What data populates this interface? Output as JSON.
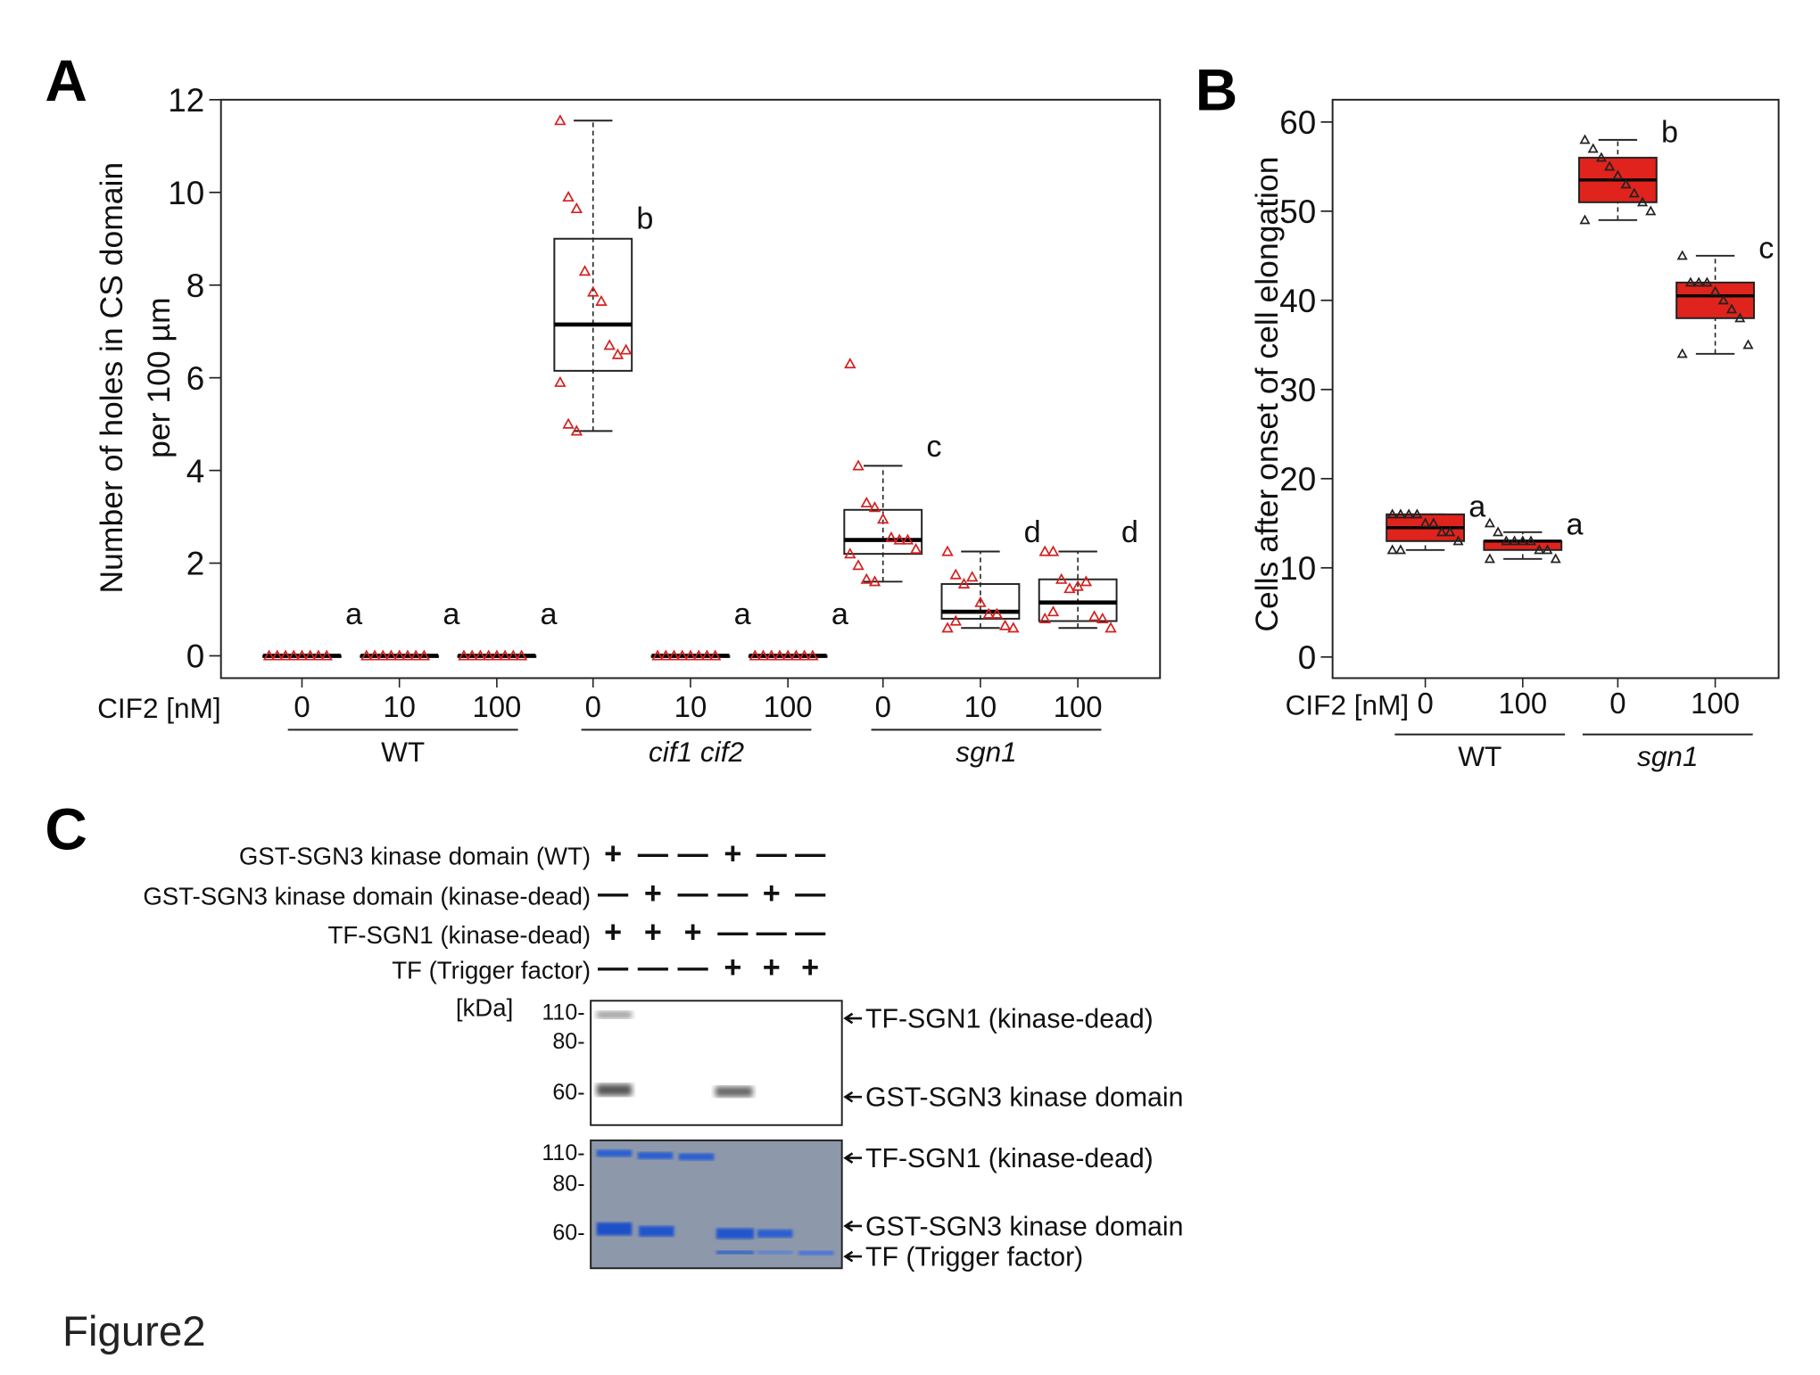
{
  "panels": {
    "a": "A",
    "b": "B",
    "c": "C"
  },
  "figure_label": "Figure2",
  "chart_data": [
    {
      "type": "box",
      "panel": "A",
      "ylabel_line1": "Number of holes in CS domain",
      "ylabel_line2": "per 100 µm",
      "ylim": [
        0,
        12
      ],
      "yticks": [
        "0",
        "2",
        "4",
        "6",
        "8",
        "10",
        "12"
      ],
      "xaxis_title": "CIF2 [nM]",
      "categories": [
        "0",
        "10",
        "100",
        "0",
        "10",
        "100",
        "0",
        "10",
        "100"
      ],
      "group_labels": [
        "WT",
        "cif1 cif2",
        "sgn1"
      ],
      "point_color": "#d42020",
      "boxes": [
        {
          "whisker_low": 0,
          "q1": 0,
          "median": 0,
          "q3": 0,
          "whisker_high": 0,
          "letter": "a",
          "points": [
            0,
            0,
            0,
            0,
            0,
            0,
            0,
            0
          ]
        },
        {
          "whisker_low": 0,
          "q1": 0,
          "median": 0,
          "q3": 0,
          "whisker_high": 0,
          "letter": "a",
          "points": [
            0,
            0,
            0,
            0,
            0,
            0,
            0,
            0
          ]
        },
        {
          "whisker_low": 0,
          "q1": 0,
          "median": 0,
          "q3": 0,
          "whisker_high": 0,
          "letter": "a",
          "points": [
            0,
            0,
            0,
            0,
            0,
            0,
            0,
            0
          ]
        },
        {
          "whisker_low": 4.85,
          "q1": 6.15,
          "median": 7.15,
          "q3": 9.0,
          "whisker_high": 11.55,
          "letter": "b",
          "points": [
            11.55,
            9.9,
            9.65,
            8.3,
            7.85,
            7.65,
            6.7,
            6.5,
            6.6,
            5.9,
            5.0,
            4.85
          ]
        },
        {
          "whisker_low": 0,
          "q1": 0,
          "median": 0,
          "q3": 0,
          "whisker_high": 0,
          "letter": "a",
          "points": [
            0,
            0,
            0,
            0,
            0,
            0,
            0,
            0
          ]
        },
        {
          "whisker_low": 0,
          "q1": 0,
          "median": 0,
          "q3": 0,
          "whisker_high": 0,
          "letter": "a",
          "points": [
            0,
            0,
            0,
            0,
            0,
            0,
            0,
            0
          ]
        },
        {
          "whisker_low": 1.6,
          "q1": 2.2,
          "median": 2.5,
          "q3": 3.15,
          "whisker_high": 4.1,
          "letter": "c",
          "points": [
            6.3,
            4.1,
            3.3,
            3.2,
            2.95,
            2.55,
            2.5,
            2.5,
            2.3,
            2.2,
            1.95,
            1.65,
            1.6
          ]
        },
        {
          "whisker_low": 0.6,
          "q1": 0.8,
          "median": 0.95,
          "q3": 1.55,
          "whisker_high": 2.25,
          "letter": "d",
          "points": [
            2.25,
            1.75,
            1.55,
            1.7,
            1.15,
            0.9,
            0.9,
            0.65,
            0.6,
            0.6,
            0.75
          ]
        },
        {
          "whisker_low": 0.6,
          "q1": 0.75,
          "median": 1.15,
          "q3": 1.65,
          "whisker_high": 2.25,
          "letter": "d",
          "points": [
            2.25,
            2.25,
            1.65,
            1.45,
            1.5,
            1.6,
            0.85,
            0.8,
            0.6,
            0.8,
            0.95
          ]
        }
      ]
    },
    {
      "type": "box",
      "panel": "B",
      "ylabel": "Cells after onset of cell elongation",
      "ylim": [
        0,
        60
      ],
      "yticks": [
        "0",
        "10",
        "20",
        "30",
        "40",
        "50",
        "60"
      ],
      "xaxis_title": "CIF2 [nM]",
      "categories": [
        "0",
        "100",
        "0",
        "100"
      ],
      "group_labels": [
        "WT",
        "sgn1"
      ],
      "box_color": "#e0231c",
      "boxes": [
        {
          "whisker_low": 12,
          "q1": 13,
          "median": 14.5,
          "q3": 16,
          "whisker_high": 16,
          "letter": "a",
          "points": [
            16,
            16,
            16,
            16,
            15,
            15,
            14,
            14,
            13,
            12,
            12
          ]
        },
        {
          "whisker_low": 11,
          "q1": 12,
          "median": 13,
          "q3": 13,
          "whisker_high": 14,
          "letter": "a",
          "points": [
            15,
            14,
            13,
            13,
            13,
            13,
            12,
            12,
            11,
            11
          ]
        },
        {
          "whisker_low": 49,
          "q1": 51,
          "median": 53.5,
          "q3": 56,
          "whisker_high": 58,
          "letter": "b",
          "points": [
            58,
            57,
            56,
            55,
            54,
            53,
            52,
            51,
            50,
            49
          ]
        },
        {
          "whisker_low": 34,
          "q1": 38,
          "median": 40.5,
          "q3": 42,
          "whisker_high": 45,
          "letter": "c",
          "points": [
            45,
            42,
            42,
            42,
            41,
            40,
            39,
            38,
            35,
            34
          ]
        }
      ]
    }
  ],
  "panel_c": {
    "rows": [
      {
        "label": "GST-SGN3 kinase domain (WT)",
        "signs": [
          "+",
          "—",
          "—",
          "+",
          "—",
          "—"
        ]
      },
      {
        "label": "GST-SGN3 kinase domain (kinase-dead)",
        "signs": [
          "—",
          "+",
          "—",
          "—",
          "+",
          "—"
        ]
      },
      {
        "label": "TF-SGN1 (kinase-dead)",
        "signs": [
          "+",
          "+",
          "+",
          "—",
          "—",
          "—"
        ]
      },
      {
        "label": "TF (Trigger factor)",
        "signs": [
          "—",
          "—",
          "—",
          "+",
          "+",
          "+"
        ]
      }
    ],
    "kda_label": "[kDa]",
    "blot1_markers": [
      "110-",
      "80-",
      "60-"
    ],
    "blot2_markers": [
      "110-",
      "80-",
      "60-"
    ],
    "blot1_bands": [
      "TF-SGN1 (kinase-dead)",
      "GST-SGN3 kinase domain"
    ],
    "blot2_bands": [
      "TF-SGN1 (kinase-dead)",
      "GST-SGN3 kinase domain",
      "TF (Trigger factor)"
    ]
  }
}
